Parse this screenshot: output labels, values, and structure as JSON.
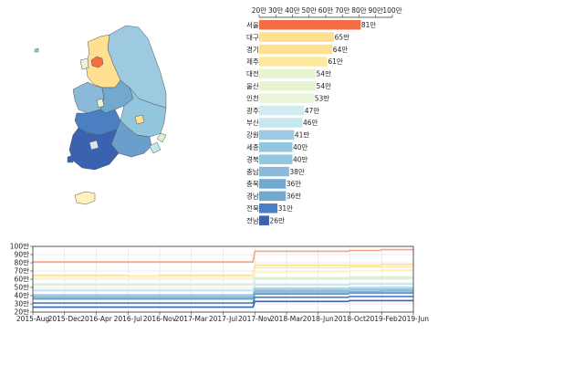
{
  "chart_data": [
    {
      "type": "bar",
      "categories": [
        "서울",
        "대구",
        "경기",
        "제주",
        "대전",
        "울산",
        "인천",
        "광주",
        "부산",
        "강원",
        "세종",
        "경북",
        "충남",
        "충북",
        "경남",
        "전북",
        "전남"
      ],
      "values": [
        81,
        65,
        64,
        61,
        54,
        54,
        53,
        47,
        46,
        41,
        40,
        40,
        38,
        36,
        36,
        31,
        26
      ],
      "value_labels": [
        "81만",
        "65만",
        "64만",
        "61만",
        "54만",
        "54만",
        "53만",
        "47만",
        "46만",
        "41만",
        "40만",
        "40만",
        "38만",
        "36만",
        "36만",
        "31만",
        "26만"
      ],
      "colors": [
        "#f46d43",
        "#fee090",
        "#fee090",
        "#fee8a0",
        "#e6f5d0",
        "#e6f5d0",
        "#e8f5d8",
        "#d0ecf2",
        "#c6e6f0",
        "#9ecae1",
        "#92c5de",
        "#92c5de",
        "#8ab9da",
        "#74a9cf",
        "#74a9cf",
        "#4a7fc1",
        "#3a62b0"
      ],
      "x_ticks": [
        "20만",
        "30만",
        "40만",
        "50만",
        "60만",
        "70만",
        "80만",
        "90만",
        "100만"
      ],
      "xlim": [
        20,
        100
      ]
    },
    {
      "type": "line",
      "y_ticks": [
        "100만",
        "90만",
        "80만",
        "70만",
        "60만",
        "50만",
        "40만",
        "30만",
        "20만"
      ],
      "ylim": [
        20,
        100
      ],
      "x_ticks": [
        "2015-Aug",
        "2015-Dec",
        "2016-Apr",
        "2016-Jul",
        "2016-Nov",
        "2017-Mar",
        "2017-Jul",
        "2017-Nov",
        "2018-Mar",
        "2018-Jun",
        "2018-Oct",
        "2019-Feb",
        "2019-Jun"
      ],
      "series": [
        {
          "values": [
            81,
            81,
            81,
            81,
            81,
            81,
            81,
            94,
            94,
            94,
            95,
            96,
            96
          ],
          "color": "#f4a582"
        },
        {
          "values": [
            65,
            65,
            65,
            64,
            65,
            65,
            65,
            77,
            77,
            77,
            77,
            78,
            78
          ],
          "color": "#fee090"
        },
        {
          "values": [
            64,
            64,
            64,
            64,
            64,
            64,
            64,
            74,
            74,
            74,
            75,
            75,
            75
          ],
          "color": "#fde8a8"
        },
        {
          "values": [
            61,
            61,
            61,
            61,
            61,
            61,
            61,
            68,
            69,
            69,
            70,
            71,
            71
          ],
          "color": "#fff2bf"
        },
        {
          "values": [
            54,
            54,
            54,
            54,
            54,
            54,
            54,
            62,
            62,
            62,
            63,
            63,
            63
          ],
          "color": "#e6f5d0"
        },
        {
          "values": [
            54,
            54,
            54,
            54,
            54,
            54,
            54,
            61,
            61,
            61,
            62,
            62,
            62
          ],
          "color": "#d9f0d3"
        },
        {
          "values": [
            53,
            53,
            53,
            53,
            53,
            53,
            53,
            60,
            60,
            60,
            61,
            61,
            61
          ],
          "color": "#dfeed8"
        },
        {
          "values": [
            47,
            47,
            47,
            47,
            47,
            47,
            47,
            54,
            54,
            54,
            55,
            55,
            55
          ],
          "color": "#cfe8f3"
        },
        {
          "values": [
            46,
            46,
            46,
            46,
            46,
            46,
            46,
            53,
            53,
            53,
            54,
            54,
            54
          ],
          "color": "#c6e6f0"
        },
        {
          "values": [
            41,
            41,
            41,
            41,
            41,
            41,
            41,
            49,
            49,
            49,
            50,
            50,
            50
          ],
          "color": "#a6d1e6"
        },
        {
          "values": [
            40,
            40,
            40,
            40,
            40,
            40,
            40,
            47,
            47,
            47,
            48,
            48,
            48
          ],
          "color": "#9ecae1"
        },
        {
          "values": [
            40,
            40,
            40,
            40,
            40,
            40,
            40,
            46,
            46,
            46,
            47,
            47,
            47
          ],
          "color": "#92c5de"
        },
        {
          "values": [
            38,
            38,
            38,
            38,
            38,
            38,
            38,
            45,
            45,
            45,
            45,
            46,
            46
          ],
          "color": "#8ab9da"
        },
        {
          "values": [
            36,
            36,
            36,
            36,
            36,
            36,
            36,
            43,
            43,
            43,
            44,
            44,
            44
          ],
          "color": "#74a9cf"
        },
        {
          "values": [
            36,
            36,
            36,
            36,
            36,
            36,
            36,
            42,
            42,
            42,
            43,
            43,
            43
          ],
          "color": "#6a9fcc"
        },
        {
          "values": [
            31,
            31,
            31,
            31,
            31,
            31,
            31,
            38,
            38,
            38,
            39,
            39,
            39
          ],
          "color": "#4a7fc1"
        },
        {
          "values": [
            26,
            26,
            26,
            26,
            26,
            26,
            26,
            33,
            33,
            33,
            34,
            34,
            34
          ],
          "color": "#3a62b0"
        }
      ]
    }
  ]
}
